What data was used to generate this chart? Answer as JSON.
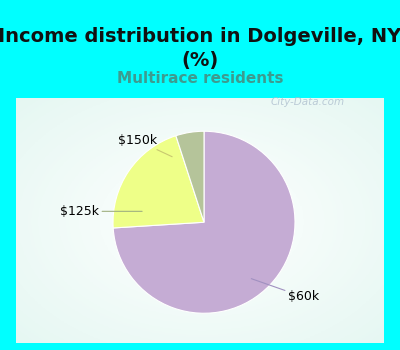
{
  "title": "Income distribution in Dolgeville, NY\n(%)",
  "subtitle": "Multirace residents",
  "title_bg_color": "#00FFFF",
  "chart_bg_color": "#FFFFFF",
  "slices": [
    {
      "label": "$60k",
      "value": 74.0,
      "color": "#C5ACD4"
    },
    {
      "label": "$150k",
      "value": 21.0,
      "color": "#EEFF88"
    },
    {
      "label": "$125k",
      "value": 5.0,
      "color": "#B5C49A"
    }
  ],
  "watermark": "City-Data.com",
  "title_fontsize": 14,
  "subtitle_fontsize": 11,
  "subtitle_color": "#3D9B8F",
  "label_fontsize": 9,
  "start_angle": 90,
  "title_color": "#111111",
  "border_color": "#00FFFF",
  "border_width": 6
}
